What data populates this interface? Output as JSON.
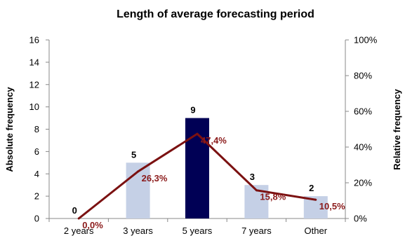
{
  "colors": {
    "bar_default": "#c5d0e6",
    "bar_highlight": "#000055",
    "line": "#7b1111",
    "line_label": "#8b1a1a",
    "axis": "#888888"
  },
  "chart_data": {
    "type": "bar",
    "title": "Length of average forecasting period",
    "categories": [
      "2 years",
      "3 years",
      "5 years",
      "7 years",
      "Other"
    ],
    "series": [
      {
        "type": "bar",
        "axis": "left",
        "values": [
          0,
          5,
          9,
          3,
          2
        ],
        "labels": [
          "0",
          "5",
          "9",
          "3",
          "2"
        ],
        "highlight_index": 2
      },
      {
        "type": "line",
        "axis": "right",
        "values": [
          0.0,
          26.3,
          47.4,
          15.8,
          10.5
        ],
        "labels": [
          "0,0%",
          "26,3%",
          "47,4%",
          "15,8%",
          "10,5%"
        ]
      }
    ],
    "ylabel": "Absolute frequency",
    "y2label": "Relative frequency",
    "ylim": [
      0,
      16
    ],
    "yticks": [
      0,
      2,
      4,
      6,
      8,
      10,
      12,
      14,
      16
    ],
    "ytick_labels": [
      "0",
      "2",
      "4",
      "6",
      "8",
      "10",
      "12",
      "14",
      "16"
    ],
    "y2lim": [
      0,
      100
    ],
    "y2ticks": [
      0,
      20,
      40,
      60,
      80,
      100
    ],
    "y2tick_labels": [
      "0%",
      "20%",
      "40%",
      "60%",
      "80%",
      "100%"
    ],
    "grid": false,
    "legend": false
  }
}
